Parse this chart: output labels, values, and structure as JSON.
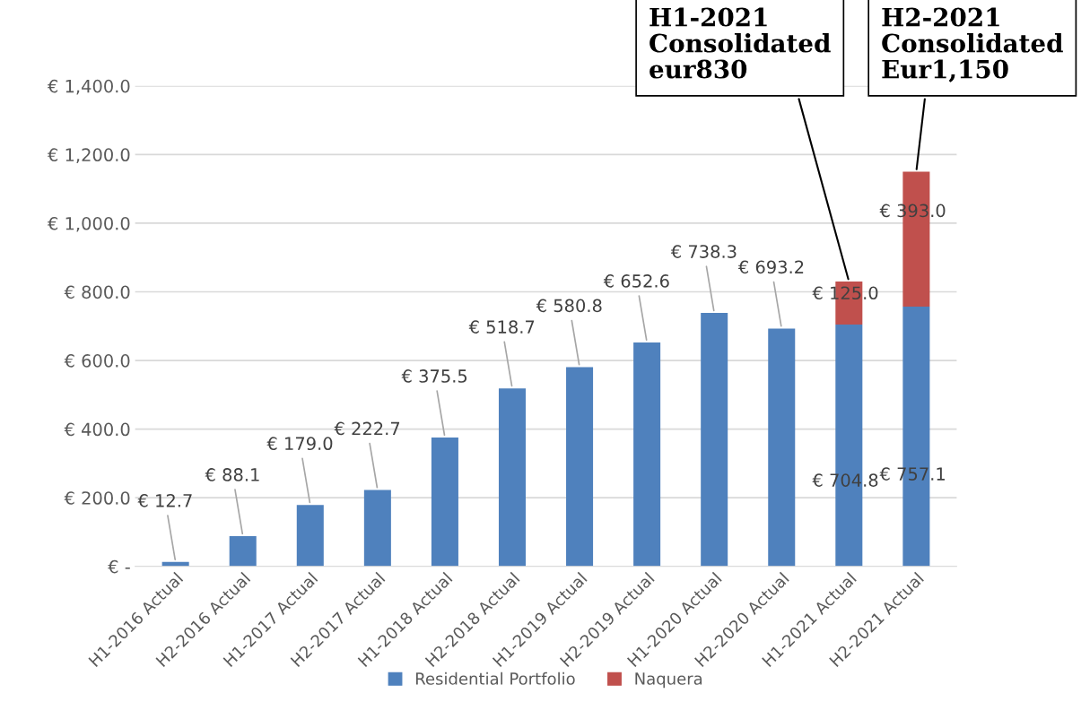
{
  "chart_data": {
    "type": "bar",
    "stacked": true,
    "categories": [
      "H1-2016 Actual",
      "H2-2016 Actual",
      "H1-2017 Actual",
      "H2-2017 Actual",
      "H1-2018 Actual",
      "H2-2018 Actual",
      "H1-2019 Actual",
      "H2-2019 Actual",
      "H1-2020 Actual",
      "H2-2020 Actual",
      "H1-2021 Actual",
      "H2-2021 Actual"
    ],
    "series": [
      {
        "name": "Residential Portfolio",
        "color": "#4f81bd",
        "values": [
          12.7,
          88.1,
          179.0,
          222.7,
          375.5,
          518.7,
          580.8,
          652.6,
          738.3,
          693.2,
          704.8,
          757.1
        ],
        "value_labels": [
          "€ 12.7",
          "€ 88.1",
          "€ 179.0",
          "€ 222.7",
          "€ 375.5",
          "€ 518.7",
          "€ 580.8",
          "€ 652.6",
          "€ 738.3",
          "€ 693.2",
          "€ 704.8",
          "€ 757.1"
        ]
      },
      {
        "name": "Naquera",
        "color": "#c0504d",
        "values": [
          null,
          null,
          null,
          null,
          null,
          null,
          null,
          null,
          null,
          null,
          125.0,
          393.0
        ],
        "value_labels": [
          null,
          null,
          null,
          null,
          null,
          null,
          null,
          null,
          null,
          null,
          "€ 125.0",
          "€ 393.0"
        ]
      }
    ],
    "ylim": [
      0,
      1400
    ],
    "yticks": [
      {
        "value": 0,
        "label": "€ -"
      },
      {
        "value": 200,
        "label": "€ 200.0"
      },
      {
        "value": 400,
        "label": "€ 400.0"
      },
      {
        "value": 600,
        "label": "€ 600.0"
      },
      {
        "value": 800,
        "label": "€ 800.0"
      },
      {
        "value": 1000,
        "label": "€ 1,000.0"
      },
      {
        "value": 1200,
        "label": "€ 1,200.0"
      },
      {
        "value": 1400,
        "label": "€ 1,400.0"
      }
    ],
    "grid": "y",
    "legend": "bottom",
    "annotations": [
      {
        "text": "H1-2021\nConsolidated\neur830",
        "x": "H1-2021 Actual",
        "y": 830
      },
      {
        "text": "H2-2021\nConsolidated\nEur1,150",
        "x": "H2-2021 Actual",
        "y": 1150
      }
    ]
  }
}
